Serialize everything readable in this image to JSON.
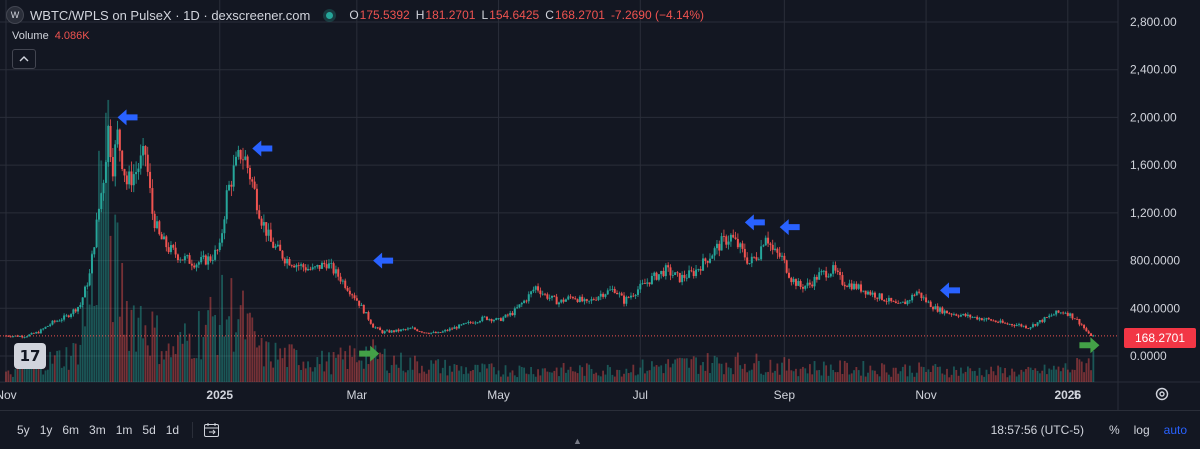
{
  "header": {
    "symbol_icon": "W",
    "title": "WBTC/WPLS on PulseX · 1D · dexscreener.com",
    "status_icon": "live-dot",
    "ohlc": {
      "open_label": "O",
      "open": "175.5392",
      "high_label": "H",
      "high": "181.2701",
      "low_label": "L",
      "low": "154.6425",
      "close_label": "C",
      "close": "168.2701",
      "change": "-7.2690 (−4.14%)"
    }
  },
  "volume_legend": {
    "label": "Volume",
    "value": "4.086K"
  },
  "collapse_icon": "chevron-up-icon",
  "logo_text": "17",
  "current_price_label": "168.2701",
  "time_range_buttons": [
    "5y",
    "1y",
    "6m",
    "3m",
    "1m",
    "5d",
    "1d"
  ],
  "footer": {
    "clock": "18:57:56 (UTC-5)",
    "percent": "%",
    "log": "log",
    "auto": "auto"
  },
  "colors": {
    "up": "#26a69a",
    "down": "#ef5350",
    "background": "#131722",
    "grid": "#2a2e39",
    "arrow_peak": "#2962ff",
    "arrow_trough": "#43a047",
    "price_label": "#f23645"
  },
  "chart_data": {
    "type": "candlestick",
    "ylim": [
      -100,
      2950
    ],
    "yticks": [
      "2,800.00",
      "2,400.00",
      "2,000.00",
      "1,600.00",
      "1,200.00",
      "800.0000",
      "400.0000",
      "0.0000"
    ],
    "ytick_values": [
      2800,
      2400,
      2000,
      1600,
      1200,
      800,
      400,
      0
    ],
    "xtick_labels": [
      "Nov",
      "2025",
      "Mar",
      "May",
      "Jul",
      "Sep",
      "Nov",
      "2026",
      "5"
    ],
    "xtick_bold": [
      false,
      true,
      false,
      false,
      false,
      false,
      false,
      true,
      false
    ],
    "x_range_days": [
      0,
      450
    ],
    "xtick_days": [
      0,
      92,
      151,
      212,
      273,
      335,
      396,
      457,
      461
    ],
    "series_close_keypoints": [
      [
        0,
        170
      ],
      [
        8,
        165
      ],
      [
        14,
        200
      ],
      [
        20,
        280
      ],
      [
        26,
        330
      ],
      [
        32,
        430
      ],
      [
        36,
        680
      ],
      [
        39,
        1100
      ],
      [
        42,
        1500
      ],
      [
        44,
        1900
      ],
      [
        46,
        1600
      ],
      [
        48,
        1850
      ],
      [
        52,
        1450
      ],
      [
        56,
        1550
      ],
      [
        60,
        1700
      ],
      [
        63,
        1200
      ],
      [
        66,
        1000
      ],
      [
        70,
        900
      ],
      [
        76,
        820
      ],
      [
        82,
        780
      ],
      [
        88,
        820
      ],
      [
        92,
        900
      ],
      [
        95,
        1350
      ],
      [
        98,
        1550
      ],
      [
        101,
        1700
      ],
      [
        103,
        1650
      ],
      [
        106,
        1450
      ],
      [
        110,
        1150
      ],
      [
        114,
        950
      ],
      [
        120,
        820
      ],
      [
        126,
        760
      ],
      [
        132,
        720
      ],
      [
        138,
        780
      ],
      [
        144,
        650
      ],
      [
        150,
        500
      ],
      [
        154,
        380
      ],
      [
        158,
        250
      ],
      [
        162,
        200
      ],
      [
        168,
        210
      ],
      [
        175,
        230
      ],
      [
        180,
        200
      ],
      [
        186,
        190
      ],
      [
        192,
        230
      ],
      [
        200,
        280
      ],
      [
        206,
        320
      ],
      [
        212,
        300
      ],
      [
        218,
        360
      ],
      [
        224,
        480
      ],
      [
        228,
        580
      ],
      [
        232,
        510
      ],
      [
        238,
        450
      ],
      [
        244,
        500
      ],
      [
        250,
        440
      ],
      [
        256,
        520
      ],
      [
        262,
        560
      ],
      [
        266,
        460
      ],
      [
        272,
        560
      ],
      [
        278,
        650
      ],
      [
        284,
        720
      ],
      [
        290,
        650
      ],
      [
        296,
        700
      ],
      [
        302,
        820
      ],
      [
        308,
        950
      ],
      [
        312,
        1000
      ],
      [
        316,
        900
      ],
      [
        320,
        780
      ],
      [
        324,
        860
      ],
      [
        327,
        1030
      ],
      [
        330,
        880
      ],
      [
        334,
        820
      ],
      [
        338,
        650
      ],
      [
        342,
        580
      ],
      [
        346,
        600
      ],
      [
        350,
        680
      ],
      [
        356,
        720
      ],
      [
        360,
        620
      ],
      [
        366,
        580
      ],
      [
        372,
        530
      ],
      [
        378,
        480
      ],
      [
        384,
        420
      ],
      [
        388,
        460
      ],
      [
        392,
        540
      ],
      [
        396,
        460
      ],
      [
        400,
        400
      ],
      [
        406,
        360
      ],
      [
        412,
        340
      ],
      [
        418,
        320
      ],
      [
        424,
        300
      ],
      [
        430,
        270
      ],
      [
        436,
        260
      ],
      [
        440,
        240
      ],
      [
        446,
        300
      ],
      [
        452,
        360
      ],
      [
        456,
        370
      ],
      [
        460,
        320
      ],
      [
        463,
        260
      ],
      [
        466,
        180
      ],
      [
        468,
        168
      ]
    ],
    "volume_max_label": "4.086K",
    "volume_keypoints": [
      [
        0,
        0.03
      ],
      [
        30,
        0.12
      ],
      [
        38,
        0.45
      ],
      [
        42,
        1.0
      ],
      [
        46,
        0.5
      ],
      [
        52,
        0.3
      ],
      [
        60,
        0.25
      ],
      [
        70,
        0.12
      ],
      [
        96,
        0.3
      ],
      [
        100,
        0.28
      ],
      [
        110,
        0.12
      ],
      [
        140,
        0.08
      ],
      [
        155,
        0.12
      ],
      [
        170,
        0.08
      ],
      [
        200,
        0.05
      ],
      [
        260,
        0.05
      ],
      [
        300,
        0.08
      ],
      [
        320,
        0.08
      ],
      [
        340,
        0.06
      ],
      [
        400,
        0.05
      ],
      [
        440,
        0.04
      ],
      [
        460,
        0.06
      ],
      [
        468,
        0.1
      ]
    ],
    "annotations": [
      {
        "type": "arrow-left",
        "color": "#2962ff",
        "day": 48,
        "price": 2000
      },
      {
        "type": "arrow-left",
        "color": "#2962ff",
        "day": 106,
        "price": 1740
      },
      {
        "type": "arrow-left",
        "color": "#2962ff",
        "day": 158,
        "price": 800
      },
      {
        "type": "arrow-left",
        "color": "#2962ff",
        "day": 318,
        "price": 1120
      },
      {
        "type": "arrow-left",
        "color": "#2962ff",
        "day": 333,
        "price": 1080
      },
      {
        "type": "arrow-left",
        "color": "#2962ff",
        "day": 402,
        "price": 550
      },
      {
        "type": "arrow-right",
        "color": "#43a047",
        "day": 152,
        "price": 20
      },
      {
        "type": "arrow-right",
        "color": "#43a047",
        "day": 462,
        "price": 90
      }
    ]
  }
}
